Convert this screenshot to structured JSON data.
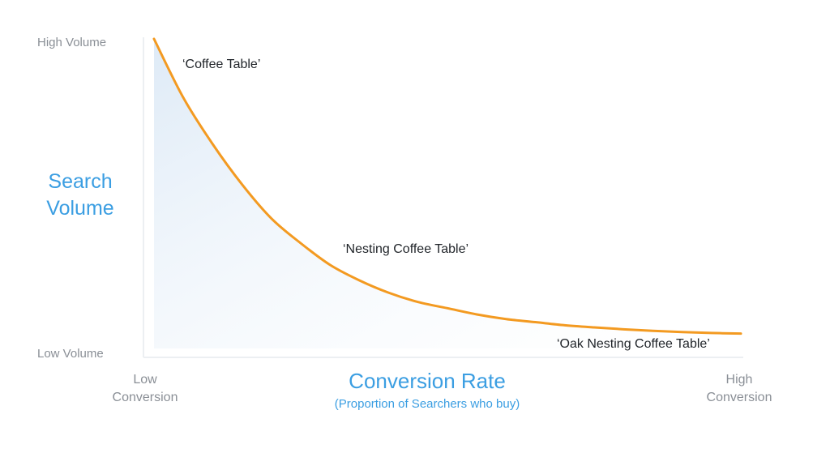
{
  "chart_data": {
    "type": "line",
    "title": "",
    "ylabel": [
      "Search",
      "Volume"
    ],
    "yticks": [
      "High Volume",
      "Low Volume"
    ],
    "xlabel": "Conversion Rate",
    "xsublabel": "(Proportion of Searchers who buy)",
    "xticks": [
      [
        "Low",
        "Conversion"
      ],
      [
        "High",
        "Conversion"
      ]
    ],
    "series": [
      {
        "x": [
          0.0,
          0.05,
          0.1,
          0.15,
          0.2,
          0.25,
          0.3,
          0.35,
          0.4,
          0.45,
          0.5,
          0.55,
          0.6,
          0.65,
          0.7,
          0.75,
          0.8,
          0.85,
          0.9,
          0.95,
          1.0
        ],
        "values": [
          1.0,
          0.81,
          0.66,
          0.53,
          0.42,
          0.34,
          0.27,
          0.22,
          0.18,
          0.15,
          0.13,
          0.11,
          0.095,
          0.085,
          0.075,
          0.068,
          0.062,
          0.057,
          0.053,
          0.05,
          0.048
        ]
      }
    ],
    "annotations": [
      {
        "text": "‘Coffee Table’",
        "x": 0.05,
        "y": 0.95
      },
      {
        "text": "‘Nesting Coffee Table’",
        "x": 0.33,
        "y": 0.35
      },
      {
        "text": "‘Oak Nesting Coffee Table’",
        "x": 0.69,
        "y": 0.04
      }
    ],
    "ylim": [
      0,
      1
    ],
    "xlim": [
      0,
      1
    ],
    "colors": {
      "line": "#f39a21",
      "fill": "#e6f0f9",
      "axis": "#eceff2",
      "title": "#3b9ee2",
      "tick": "#8a8f96",
      "annotation": "#1f2328"
    },
    "grid": false,
    "legend": "none"
  }
}
